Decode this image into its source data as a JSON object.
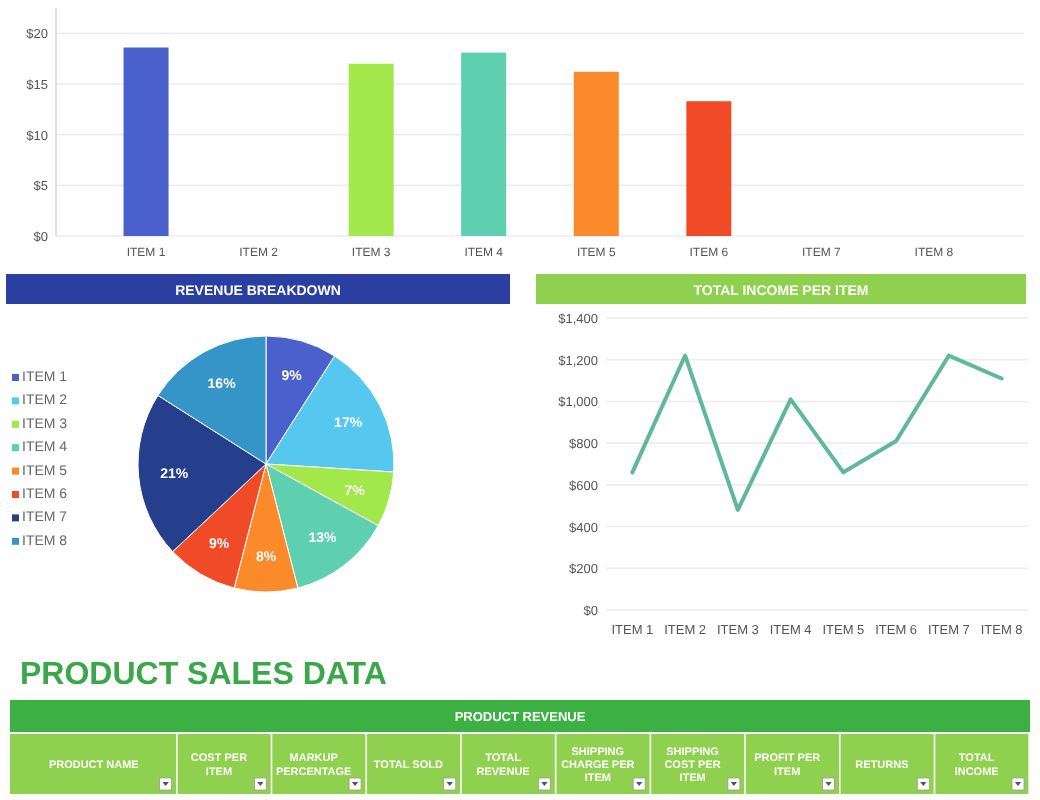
{
  "chart_data": [
    {
      "type": "bar",
      "categories": [
        "ITEM 1",
        "ITEM 2",
        "ITEM 3",
        "ITEM 4",
        "ITEM 5",
        "ITEM 6",
        "ITEM 7",
        "ITEM 8"
      ],
      "values": [
        18.6,
        null,
        17.0,
        18.1,
        16.2,
        13.3,
        null,
        null
      ],
      "colors": [
        "#4a60cc",
        null,
        "#a3e84a",
        "#5ed0b0",
        "#fb8a2a",
        "#f04a26",
        null,
        null
      ],
      "ylim": [
        0,
        22.5
      ],
      "yticks": [
        {
          "value": 0,
          "label": "$0"
        },
        {
          "value": 5,
          "label": "$5"
        },
        {
          "value": 10,
          "label": "$10"
        },
        {
          "value": 15,
          "label": "$15"
        },
        {
          "value": 20,
          "label": "$20"
        }
      ],
      "grid": "y"
    },
    {
      "type": "pie",
      "title": "REVENUE BREAKDOWN",
      "categories": [
        "ITEM 1",
        "ITEM 2",
        "ITEM 3",
        "ITEM 4",
        "ITEM 5",
        "ITEM 6",
        "ITEM 7",
        "ITEM 8"
      ],
      "values": [
        9,
        17,
        7,
        13,
        8,
        9,
        21,
        16
      ],
      "value_labels": [
        "9%",
        "17%",
        "7%",
        "13%",
        "8%",
        "9%",
        "21%",
        "16%"
      ],
      "colors": [
        "#4a60cc",
        "#56c8f0",
        "#a3e84a",
        "#5ed0b0",
        "#fb8a2a",
        "#f04a26",
        "#263f8c",
        "#3595c8"
      ],
      "legend": "left"
    },
    {
      "type": "line",
      "title": "TOTAL INCOME PER ITEM",
      "categories": [
        "ITEM 1",
        "ITEM 2",
        "ITEM 3",
        "ITEM 4",
        "ITEM 5",
        "ITEM 6",
        "ITEM 7",
        "ITEM 8"
      ],
      "series": [
        {
          "color": "#5fb89a",
          "values": [
            660,
            1220,
            480,
            1010,
            660,
            810,
            1220,
            1110
          ]
        }
      ],
      "ylim": [
        0,
        1400
      ],
      "yticks": [
        {
          "value": 0,
          "label": "$0"
        },
        {
          "value": 200,
          "label": "$200"
        },
        {
          "value": 400,
          "label": "$400"
        },
        {
          "value": 600,
          "label": "$600"
        },
        {
          "value": 800,
          "label": "$800"
        },
        {
          "value": 1000,
          "label": "$1,000"
        },
        {
          "value": 1200,
          "label": "$1,200"
        },
        {
          "value": 1400,
          "label": "$1,400"
        }
      ],
      "grid": "y",
      "marker": "none"
    },
    {
      "type": "other",
      "title": "PRODUCT SALES DATA",
      "subtitle": "PRODUCT REVENUE",
      "annotations": [
        "PRODUCT NAME",
        "COST PER ITEM",
        "MARKUP PERCENTAGE",
        "TOTAL SOLD",
        "TOTAL REVENUE",
        "SHIPPING CHARGE PER ITEM",
        "SHIPPING COST PER ITEM",
        "PROFIT PER ITEM",
        "RETURNS",
        "TOTAL INCOME"
      ]
    }
  ]
}
